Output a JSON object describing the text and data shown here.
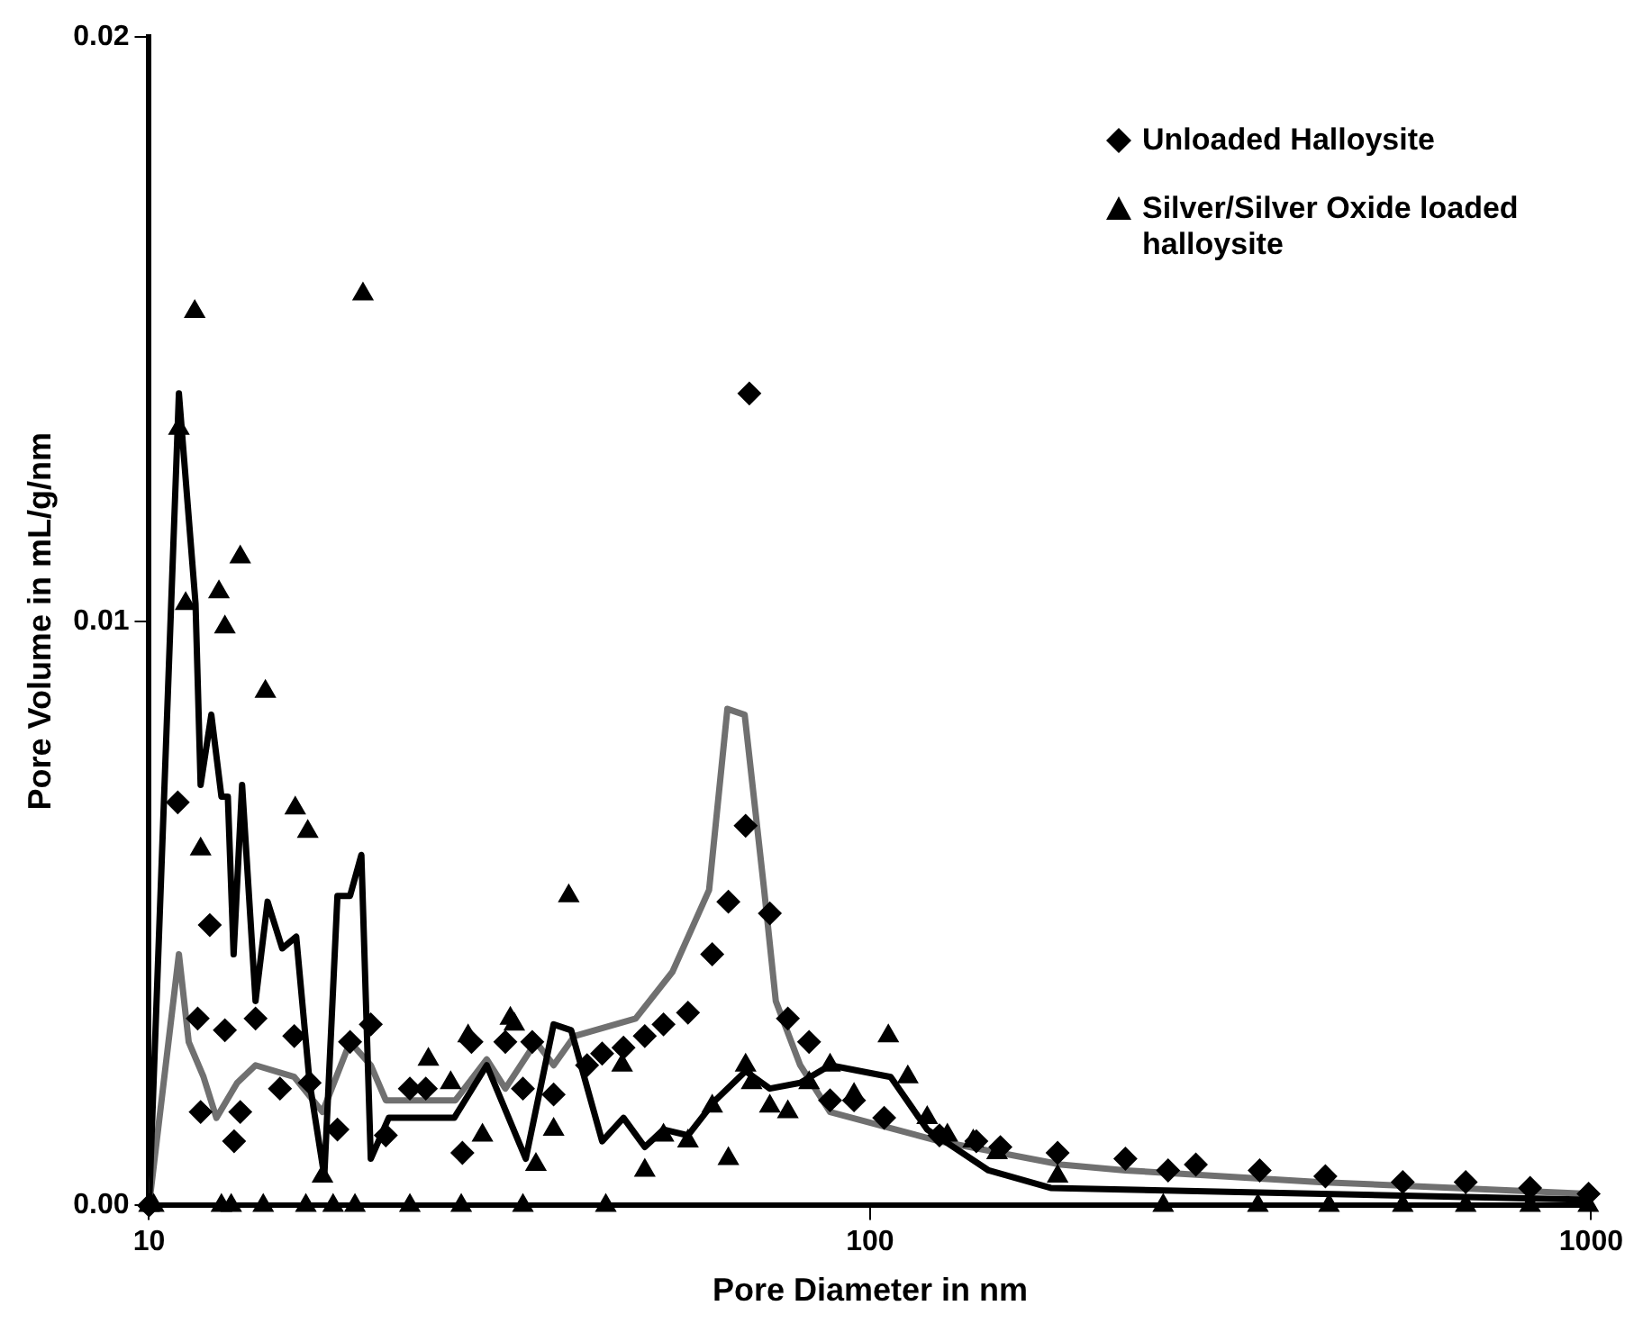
{
  "chart_data": {
    "type": "scatter",
    "xlabel": "Pore Diameter in nm",
    "ylabel": "Pore Volume in mL/g/nm",
    "log": "x",
    "xlim": [
      10,
      1000
    ],
    "xticks": [
      10,
      100,
      1000
    ],
    "ylim": [
      0,
      0.02
    ],
    "yticks": [
      {
        "value": 0,
        "label": "0.00"
      },
      {
        "value": 0.01,
        "label": "0.01"
      },
      {
        "value": 0.02,
        "label": "0.02"
      }
    ],
    "grid": false,
    "legend": "top right",
    "series": [
      {
        "name": "Unloaded Halloysite",
        "type": "scatter",
        "marker": "diamond",
        "color": "#000000",
        "x": [
          10,
          10.96,
          11.68,
          11.79,
          12.14,
          12.74,
          13.12,
          13.38,
          14.05,
          15.19,
          15.9,
          16.7,
          18.25,
          19.0,
          20.3,
          21.3,
          23.0,
          24.2,
          27.2,
          28.0,
          31.2,
          33.0,
          34.0,
          36.4,
          40.5,
          42.5,
          45.5,
          48.7,
          51.7,
          55.9,
          60.4,
          63.6,
          67.2,
          68.0,
          72.6,
          76.9,
          82.3,
          88.0,
          95.0,
          104.6,
          124.8,
          140.4,
          151.6,
          182,
          226,
          259,
          283,
          347,
          428,
          548,
          670,
          823,
          992
        ],
        "values": [
          0,
          0.0069,
          0.0032,
          0.0016,
          0.0048,
          0.003,
          0.0011,
          0.0016,
          0.0032,
          0.002,
          0.0029,
          0.0021,
          0.0013,
          0.0028,
          0.0031,
          0.0012,
          0.002,
          0.002,
          0.0009,
          0.0028,
          0.0028,
          0.002,
          0.0028,
          0.0019,
          0.0024,
          0.0026,
          0.0027,
          0.0029,
          0.0031,
          0.0033,
          0.0043,
          0.0052,
          0.0065,
          0.0139,
          0.005,
          0.0032,
          0.0028,
          0.0018,
          0.0018,
          0.0015,
          0.0012,
          0.0011,
          0.001,
          0.0009,
          0.0008,
          0.0006,
          0.0007,
          0.0006,
          0.0005,
          0.0004,
          0.0004,
          0.0003,
          0.0002
        ]
      },
      {
        "name": "Silver/Silver Oxide loaded halloysite",
        "type": "scatter",
        "marker": "triangle",
        "color": "#000000",
        "x": [
          10,
          10.15,
          11.0,
          11.24,
          11.57,
          11.79,
          12.5,
          12.74,
          13.38,
          14.5,
          15.95,
          16.6,
          17.4,
          19.8,
          24.4,
          26.2,
          27.7,
          29.0,
          31.7,
          32.1,
          34.4,
          36.4,
          38.2,
          45.3,
          48.7,
          51.7,
          55.9,
          60.4,
          63.6,
          67.2,
          68.5,
          72.6,
          76.9,
          82.3,
          88.0,
          95.0,
          106,
          112.8,
          120,
          128,
          139,
          150,
          182,
          12.6,
          13.0,
          14.4,
          16.5,
          18.0,
          19.3,
          23.0,
          27.1,
          33.0,
          43.0,
          255,
          345,
          433,
          548,
          670,
          823,
          991
        ],
        "values": [
          0,
          0,
          0.0133,
          0.0103,
          0.0153,
          0.0061,
          0.0105,
          0.0099,
          0.0111,
          0.0088,
          0.0068,
          0.0064,
          0.0005,
          0.0156,
          0.0025,
          0.0021,
          0.0029,
          0.0012,
          0.0032,
          0.0031,
          0.0007,
          0.0013,
          0.0053,
          0.0024,
          0.0006,
          0.0012,
          0.0011,
          0.0017,
          0.0008,
          0.0024,
          0.0021,
          0.0017,
          0.0016,
          0.0021,
          0.0024,
          0.0019,
          0.0029,
          0.0022,
          0.0015,
          0.0012,
          0.0011,
          0.0009,
          0.0005,
          0,
          0,
          0,
          0,
          0,
          0,
          0,
          0,
          0,
          0,
          0,
          0,
          0,
          0,
          0,
          0,
          0
        ]
      },
      {
        "type": "line",
        "color": "#000000",
        "x": [
          10,
          11.0,
          11.6,
          11.79,
          12.2,
          12.6,
          12.86,
          13.1,
          13.46,
          14.05,
          14.6,
          15.3,
          16.0,
          16.7,
          17.5,
          18.25,
          19.0,
          19.7,
          20.3,
          21.5,
          26.5,
          29.4,
          33.3,
          36.4,
          38.5,
          42.5,
          45.5,
          48.7,
          51.7,
          55.9,
          61,
          67.2,
          72.6,
          80,
          88,
          106.8,
          120,
          146,
          178,
          990
        ],
        "values": [
          0,
          0.0139,
          0.0103,
          0.0072,
          0.0084,
          0.007,
          0.007,
          0.0043,
          0.0072,
          0.0035,
          0.0052,
          0.0044,
          0.0046,
          0.0021,
          0.0005,
          0.0053,
          0.0053,
          0.006,
          0.0008,
          0.0015,
          0.0015,
          0.0024,
          0.0008,
          0.0031,
          0.003,
          0.0011,
          0.0015,
          0.001,
          0.0013,
          0.0012,
          0.0018,
          0.0023,
          0.002,
          0.0021,
          0.0024,
          0.0022,
          0.0013,
          0.0006,
          0.0003,
          0.0001
        ]
      },
      {
        "type": "line",
        "color": "#707070",
        "x": [
          10,
          11.0,
          11.35,
          11.9,
          12.4,
          13.25,
          14.05,
          15.9,
          17.4,
          19.0,
          20.3,
          21.3,
          26.6,
          29.4,
          31.2,
          34.4,
          36.4,
          38.9,
          47.3,
          53.2,
          59.8,
          63.4,
          67,
          71.3,
          74,
          80,
          88,
          124.8,
          184,
          226,
          420,
          990
        ],
        "values": [
          0,
          0.0043,
          0.0028,
          0.0022,
          0.0015,
          0.0021,
          0.0024,
          0.0022,
          0.0016,
          0.0028,
          0.0024,
          0.0018,
          0.0018,
          0.0025,
          0.002,
          0.0028,
          0.0024,
          0.0029,
          0.0032,
          0.004,
          0.0054,
          0.0085,
          0.0084,
          0.0054,
          0.0035,
          0.0024,
          0.0016,
          0.0011,
          0.0007,
          0.0006,
          0.0004,
          0.0002
        ]
      }
    ]
  }
}
